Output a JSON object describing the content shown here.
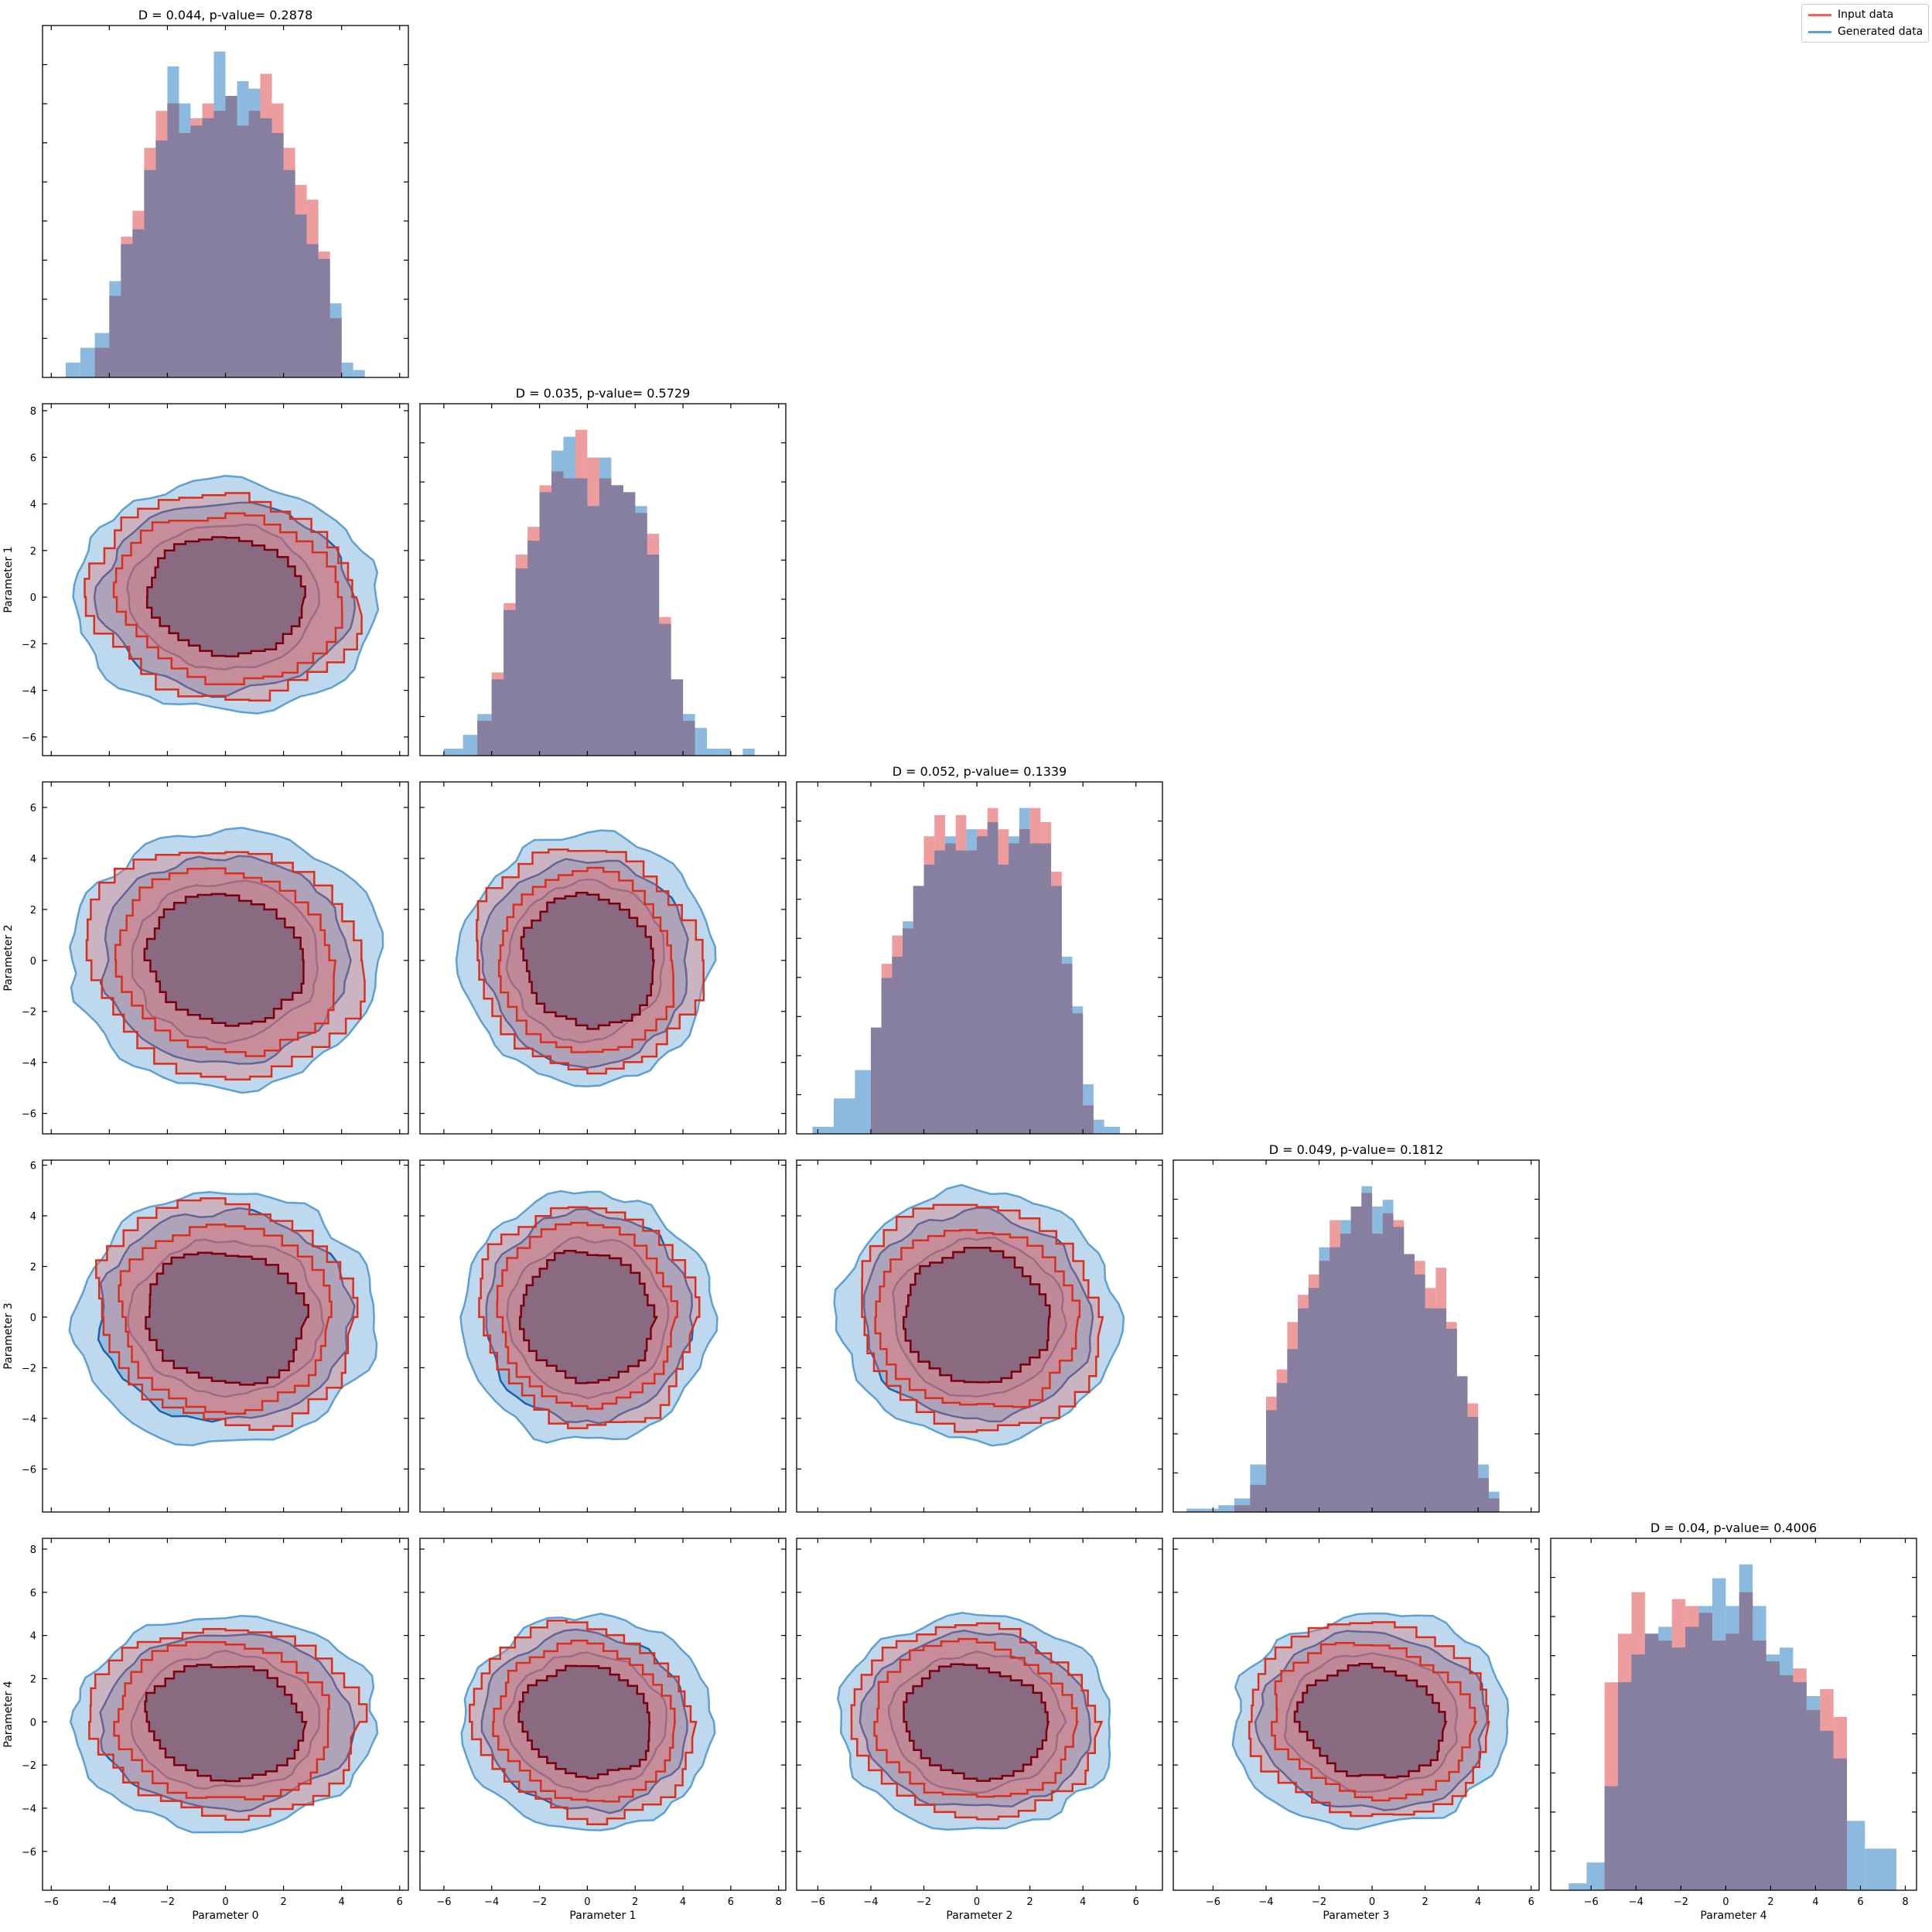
{
  "chart_data": {
    "type": "corner_plot",
    "parameters": [
      "Parameter 0",
      "Parameter 1",
      "Parameter 2",
      "Parameter 3",
      "Parameter 4"
    ],
    "legend": {
      "placement": "top-right",
      "entries": [
        {
          "label": "Input data",
          "color": "#e8675a"
        },
        {
          "label": "Generated data",
          "color": "#5ea1d1"
        }
      ]
    },
    "colors": {
      "input_fill": "#e57373",
      "generated_fill": "#6fa8d6",
      "overlap": "#877fa0",
      "contour_input": "#d7301f",
      "contour_input_dark": "#7a0010",
      "contour_generated": "#1f5fa8",
      "density_core": "#5b5070"
    },
    "diagonal": [
      {
        "title": "D = 0.044, p-value= 0.2878",
        "xlim": [
          -6.3,
          6.3
        ],
        "x_ticks": [
          -6,
          -4,
          -2,
          0,
          2,
          4,
          6
        ],
        "bin_edges": [
          -5.5,
          -5.0,
          -4.5,
          -4.0,
          -3.6,
          -3.2,
          -2.8,
          -2.4,
          -2.0,
          -1.6,
          -1.2,
          -0.8,
          -0.4,
          0.0,
          0.4,
          0.8,
          1.2,
          1.6,
          2.0,
          2.4,
          2.8,
          3.2,
          3.6,
          4.0,
          4.4,
          4.8,
          5.2
        ],
        "input_counts": [
          0,
          0,
          8,
          22,
          38,
          45,
          62,
          72,
          74,
          66,
          70,
          74,
          72,
          76,
          68,
          72,
          82,
          74,
          62,
          52,
          48,
          34,
          16,
          0,
          0,
          0
        ],
        "generated_counts": [
          4,
          8,
          12,
          26,
          36,
          40,
          56,
          64,
          84,
          74,
          68,
          70,
          88,
          76,
          80,
          78,
          70,
          66,
          56,
          44,
          36,
          32,
          20,
          4,
          2,
          0
        ]
      },
      {
        "title": "D = 0.035, p-value= 0.5729",
        "xlim": [
          -7,
          8.3
        ],
        "x_ticks": [
          -6,
          -4,
          -2,
          0,
          2,
          4,
          6,
          8
        ],
        "bin_edges": [
          -6.0,
          -5.2,
          -4.6,
          -4.0,
          -3.5,
          -3.0,
          -2.5,
          -2.0,
          -1.5,
          -1.0,
          -0.5,
          0.0,
          0.5,
          1.0,
          1.5,
          2.0,
          2.5,
          3.0,
          3.5,
          4.0,
          4.5,
          5.0,
          5.5,
          6.0,
          6.5,
          7.0
        ],
        "input_counts": [
          0,
          0,
          10,
          24,
          44,
          58,
          66,
          78,
          82,
          80,
          94,
          86,
          80,
          78,
          76,
          70,
          64,
          40,
          22,
          10,
          0,
          0,
          0,
          0,
          0
        ],
        "generated_counts": [
          2,
          6,
          12,
          22,
          42,
          54,
          62,
          76,
          88,
          92,
          80,
          72,
          86,
          78,
          76,
          72,
          58,
          38,
          22,
          12,
          8,
          2,
          2,
          0,
          2
        ]
      },
      {
        "title": "D = 0.052, p-value= 0.1339",
        "xlim": [
          -6.8,
          7
        ],
        "x_ticks": [
          -6,
          -4,
          -2,
          0,
          2,
          4,
          6
        ],
        "bin_edges": [
          -6.2,
          -5.4,
          -4.6,
          -4.0,
          -3.6,
          -3.2,
          -2.8,
          -2.4,
          -2.0,
          -1.6,
          -1.2,
          -0.8,
          -0.4,
          0.0,
          0.4,
          0.8,
          1.2,
          1.6,
          2.0,
          2.4,
          2.8,
          3.2,
          3.6,
          4.0,
          4.4,
          4.8,
          5.4,
          6.2
        ],
        "input_counts": [
          0,
          0,
          0,
          30,
          48,
          56,
          58,
          70,
          84,
          90,
          82,
          90,
          80,
          86,
          92,
          86,
          82,
          86,
          92,
          88,
          74,
          48,
          34,
          8,
          0,
          0,
          0
        ],
        "generated_counts": [
          2,
          10,
          18,
          30,
          44,
          50,
          60,
          70,
          76,
          80,
          84,
          80,
          86,
          84,
          88,
          76,
          84,
          92,
          82,
          82,
          70,
          50,
          36,
          14,
          4,
          2,
          0
        ]
      },
      {
        "title": "D = 0.049, p-value= 0.1812",
        "xlim": [
          -7.5,
          6.3
        ],
        "x_ticks": [
          -6,
          -4,
          -2,
          0,
          2,
          4,
          6
        ],
        "bin_edges": [
          -7.0,
          -6.4,
          -5.8,
          -5.2,
          -4.6,
          -4.0,
          -3.6,
          -3.2,
          -2.8,
          -2.4,
          -2.0,
          -1.6,
          -1.2,
          -0.8,
          -0.4,
          0.0,
          0.4,
          0.8,
          1.2,
          1.6,
          2.0,
          2.4,
          2.8,
          3.2,
          3.6,
          4.0,
          4.4,
          4.8,
          5.4
        ],
        "input_counts": [
          0,
          0,
          0,
          2,
          8,
          34,
          42,
          56,
          64,
          70,
          74,
          86,
          82,
          90,
          94,
          82,
          88,
          86,
          76,
          74,
          66,
          72,
          56,
          40,
          32,
          10,
          4,
          0
        ],
        "generated_counts": [
          1,
          1,
          2,
          4,
          14,
          30,
          38,
          48,
          60,
          66,
          78,
          78,
          86,
          90,
          96,
          90,
          92,
          84,
          76,
          70,
          60,
          60,
          54,
          40,
          28,
          14,
          6,
          0
        ]
      },
      {
        "title": "D = 0.04, p-value= 0.4006",
        "xlim": [
          -7.8,
          8.5
        ],
        "x_ticks": [
          -6,
          -4,
          -2,
          0,
          2,
          4,
          6,
          8
        ],
        "bin_edges": [
          -7.0,
          -6.2,
          -5.4,
          -4.8,
          -4.2,
          -3.6,
          -3.0,
          -2.4,
          -1.8,
          -1.2,
          -0.6,
          0.0,
          0.6,
          1.2,
          1.8,
          2.4,
          3.0,
          3.6,
          4.2,
          4.8,
          5.4,
          6.2,
          7.0,
          7.6
        ],
        "input_counts": [
          0,
          0,
          60,
          74,
          86,
          74,
          72,
          84,
          82,
          80,
          72,
          74,
          86,
          72,
          66,
          62,
          64,
          52,
          58,
          50,
          0,
          0,
          0
        ],
        "generated_counts": [
          2,
          8,
          30,
          60,
          68,
          74,
          76,
          70,
          76,
          82,
          90,
          82,
          94,
          82,
          68,
          70,
          60,
          56,
          46,
          38,
          20,
          12,
          12
        ]
      }
    ],
    "off_diagonal": [
      {
        "row": 1,
        "col": 0,
        "xlim": [
          -6.3,
          6.3
        ],
        "ylim": [
          -6.8,
          8.3
        ],
        "x_ticks": [
          -6,
          -4,
          -2,
          0,
          2,
          4,
          6
        ],
        "y_ticks": [
          -6,
          -4,
          -2,
          0,
          2,
          4,
          6,
          8
        ]
      },
      {
        "row": 2,
        "col": 0,
        "xlim": [
          -6.3,
          6.3
        ],
        "ylim": [
          -6.8,
          7.0
        ],
        "x_ticks": [
          -6,
          -4,
          -2,
          0,
          2,
          4,
          6
        ],
        "y_ticks": [
          -6,
          -4,
          -2,
          0,
          2,
          4,
          6
        ]
      },
      {
        "row": 2,
        "col": 1,
        "xlim": [
          -7,
          8.3
        ],
        "ylim": [
          -6.8,
          7.0
        ],
        "x_ticks": [
          -6,
          -4,
          -2,
          0,
          2,
          4,
          6,
          8
        ],
        "y_ticks": [
          -6,
          -4,
          -2,
          0,
          2,
          4,
          6
        ]
      },
      {
        "row": 3,
        "col": 0,
        "xlim": [
          -6.3,
          6.3
        ],
        "ylim": [
          -7.7,
          6.2
        ],
        "x_ticks": [
          -6,
          -4,
          -2,
          0,
          2,
          4,
          6
        ],
        "y_ticks": [
          -6,
          -4,
          -2,
          0,
          2,
          4,
          6
        ]
      },
      {
        "row": 3,
        "col": 1,
        "xlim": [
          -7,
          8.3
        ],
        "ylim": [
          -7.7,
          6.2
        ],
        "x_ticks": [
          -6,
          -4,
          -2,
          0,
          2,
          4,
          6,
          8
        ],
        "y_ticks": [
          -6,
          -4,
          -2,
          0,
          2,
          4,
          6
        ]
      },
      {
        "row": 3,
        "col": 2,
        "xlim": [
          -6.8,
          7.0
        ],
        "ylim": [
          -7.7,
          6.2
        ],
        "x_ticks": [
          -6,
          -4,
          -2,
          0,
          2,
          4,
          6
        ],
        "y_ticks": [
          -6,
          -4,
          -2,
          0,
          2,
          4,
          6
        ]
      },
      {
        "row": 4,
        "col": 0,
        "xlim": [
          -6.3,
          6.3
        ],
        "ylim": [
          -7.8,
          8.5
        ],
        "x_ticks": [
          -6,
          -4,
          -2,
          0,
          2,
          4,
          6
        ],
        "y_ticks": [
          -6,
          -4,
          -2,
          0,
          2,
          4,
          6,
          8
        ]
      },
      {
        "row": 4,
        "col": 1,
        "xlim": [
          -7,
          8.3
        ],
        "ylim": [
          -7.8,
          8.5
        ],
        "x_ticks": [
          -6,
          -4,
          -2,
          0,
          2,
          4,
          6,
          8
        ],
        "y_ticks": [
          -6,
          -4,
          -2,
          0,
          2,
          4,
          6,
          8
        ]
      },
      {
        "row": 4,
        "col": 2,
        "xlim": [
          -6.8,
          7.0
        ],
        "ylim": [
          -7.8,
          8.5
        ],
        "x_ticks": [
          -6,
          -4,
          -2,
          0,
          2,
          4,
          6
        ],
        "y_ticks": [
          -6,
          -4,
          -2,
          0,
          2,
          4,
          6,
          8
        ]
      },
      {
        "row": 4,
        "col": 3,
        "xlim": [
          -7.5,
          6.3
        ],
        "ylim": [
          -7.8,
          8.5
        ],
        "x_ticks": [
          -6,
          -4,
          -2,
          0,
          2,
          4,
          6
        ],
        "y_ticks": [
          -6,
          -4,
          -2,
          0,
          2,
          4,
          6,
          8
        ]
      }
    ],
    "contour_levels": {
      "generated_radii": [
        5.0,
        4.1,
        3.1
      ],
      "input_radii": [
        4.4,
        3.6,
        2.6
      ],
      "generated_fill_opacity": [
        0.45,
        0.55,
        0.6
      ],
      "input_fill_opacity": [
        0.35,
        0.45,
        0.55
      ]
    }
  }
}
